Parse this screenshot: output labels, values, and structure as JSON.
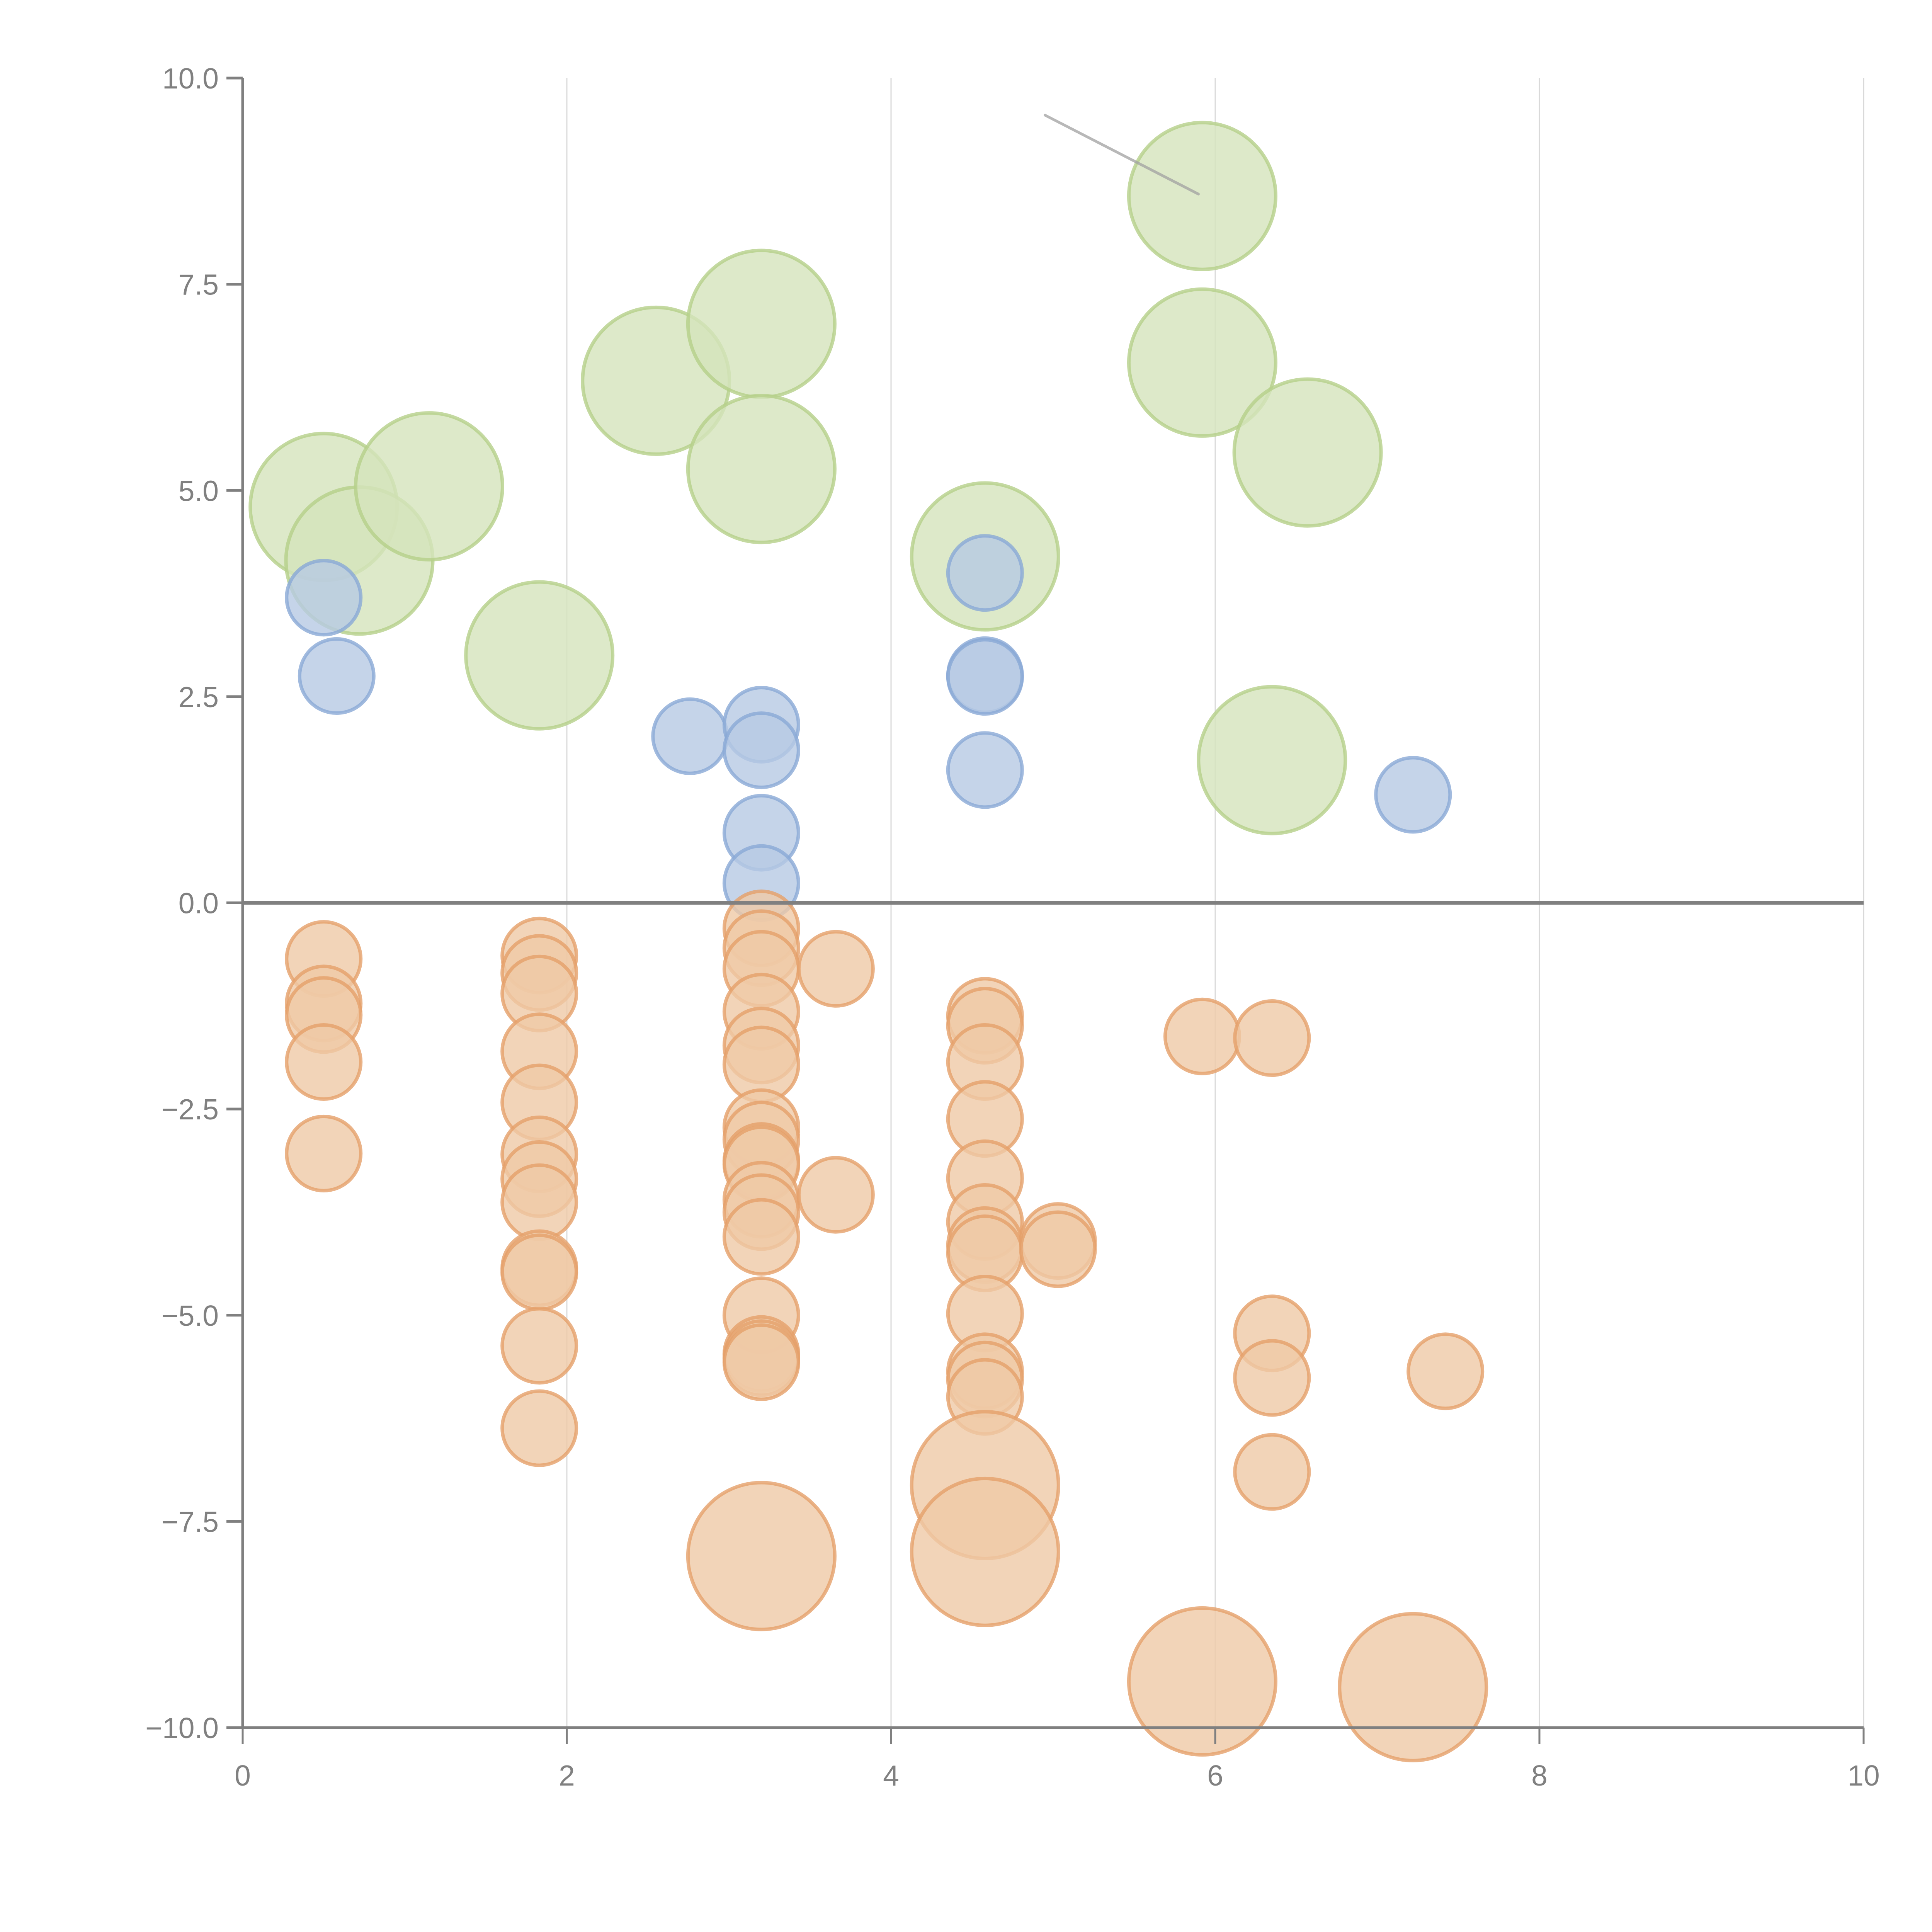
{
  "chart_data": {
    "type": "scatter",
    "title": "",
    "xlabel": "",
    "ylabel": "",
    "xlim": [
      0,
      10
    ],
    "ylim": [
      -10,
      10
    ],
    "grid": "vertical",
    "zero_line": true,
    "legend": "none",
    "x_ticks": [
      "0",
      "2",
      "4",
      "6",
      "8",
      "10"
    ],
    "x_tick_values": [
      0,
      2,
      4,
      6,
      8,
      10
    ],
    "y_ticks": [
      "10.0",
      "7.5",
      "5.0",
      "2.5",
      "0.0",
      "−2.5",
      "−5.0",
      "−7.5",
      "−10.0"
    ],
    "y_tick_values": [
      10,
      7.5,
      5,
      2.5,
      0,
      -2.5,
      -5,
      -7.5,
      -10
    ],
    "colors": {
      "green": "#b5d08a",
      "blue": "#7f9fcf",
      "orange": "#e8a470",
      "axis": "#808080",
      "grid": "#d9d9d9"
    },
    "series": [
      {
        "name": "green-large",
        "color": "green",
        "size": "large",
        "points": [
          [
            0.5,
            4.8
          ],
          [
            0.72,
            4.15
          ],
          [
            1.15,
            5.05
          ],
          [
            1.83,
            3.0
          ],
          [
            2.55,
            6.33
          ],
          [
            3.2,
            7.02
          ],
          [
            3.2,
            5.26
          ],
          [
            4.58,
            4.2
          ],
          [
            5.92,
            8.57
          ],
          [
            5.92,
            6.55
          ],
          [
            6.57,
            5.46
          ],
          [
            6.35,
            1.73
          ]
        ]
      },
      {
        "name": "blue-small",
        "color": "blue",
        "size": "small",
        "points": [
          [
            0.5,
            3.7
          ],
          [
            0.58,
            2.75
          ],
          [
            2.76,
            2.02
          ],
          [
            3.2,
            2.16
          ],
          [
            3.2,
            1.85
          ],
          [
            3.2,
            0.85
          ],
          [
            3.2,
            0.24
          ],
          [
            4.58,
            4.0
          ],
          [
            4.58,
            2.76
          ],
          [
            4.58,
            2.74
          ],
          [
            4.58,
            1.61
          ],
          [
            7.22,
            1.31
          ]
        ]
      },
      {
        "name": "orange-small",
        "color": "orange",
        "size": "small",
        "points": [
          [
            0.5,
            -0.68
          ],
          [
            0.5,
            -1.22
          ],
          [
            0.5,
            -1.36
          ],
          [
            0.5,
            -1.93
          ],
          [
            0.5,
            -3.04
          ],
          [
            1.83,
            -0.64
          ],
          [
            1.83,
            -0.85
          ],
          [
            1.83,
            -1.1
          ],
          [
            1.83,
            -1.8
          ],
          [
            1.83,
            -2.42
          ],
          [
            1.83,
            -3.05
          ],
          [
            1.83,
            -3.35
          ],
          [
            1.83,
            -3.63
          ],
          [
            1.83,
            -4.43
          ],
          [
            1.83,
            -4.48
          ],
          [
            1.83,
            -5.37
          ],
          [
            1.83,
            -6.37
          ],
          [
            3.2,
            -0.31
          ],
          [
            3.2,
            -0.55
          ],
          [
            3.2,
            -0.8
          ],
          [
            3.2,
            -1.32
          ],
          [
            3.2,
            -1.73
          ],
          [
            3.2,
            -1.96
          ],
          [
            3.2,
            -2.72
          ],
          [
            3.2,
            -2.87
          ],
          [
            3.2,
            -3.13
          ],
          [
            3.2,
            -3.17
          ],
          [
            3.2,
            -3.6
          ],
          [
            3.2,
            -3.75
          ],
          [
            3.2,
            -4.05
          ],
          [
            3.2,
            -5.0
          ],
          [
            3.2,
            -5.47
          ],
          [
            3.2,
            -5.52
          ],
          [
            3.2,
            -5.57
          ],
          [
            3.66,
            -0.8
          ],
          [
            3.66,
            -3.54
          ],
          [
            4.58,
            -1.37
          ],
          [
            4.58,
            -1.49
          ],
          [
            4.58,
            -1.93
          ],
          [
            4.58,
            -2.62
          ],
          [
            4.58,
            -3.34
          ],
          [
            4.58,
            -3.87
          ],
          [
            4.58,
            -4.15
          ],
          [
            4.58,
            -4.25
          ],
          [
            4.58,
            -4.98
          ],
          [
            4.58,
            -5.68
          ],
          [
            4.58,
            -5.78
          ],
          [
            4.58,
            -5.99
          ],
          [
            5.03,
            -4.1
          ],
          [
            5.03,
            -4.2
          ],
          [
            5.92,
            -1.62
          ],
          [
            6.35,
            -1.64
          ],
          [
            6.35,
            -5.22
          ],
          [
            6.35,
            -5.76
          ],
          [
            6.35,
            -6.9
          ],
          [
            7.42,
            -5.68
          ]
        ]
      },
      {
        "name": "orange-large",
        "color": "orange",
        "size": "large",
        "points": [
          [
            3.2,
            -7.92
          ],
          [
            4.58,
            -7.06
          ],
          [
            4.58,
            -7.87
          ],
          [
            5.92,
            -9.44
          ],
          [
            7.22,
            -9.51
          ]
        ]
      }
    ],
    "annotations": [
      {
        "point": [
          5.92,
          8.57
        ],
        "label_pos": [
          4.95,
          9.55
        ],
        "connector": "gray"
      }
    ]
  }
}
